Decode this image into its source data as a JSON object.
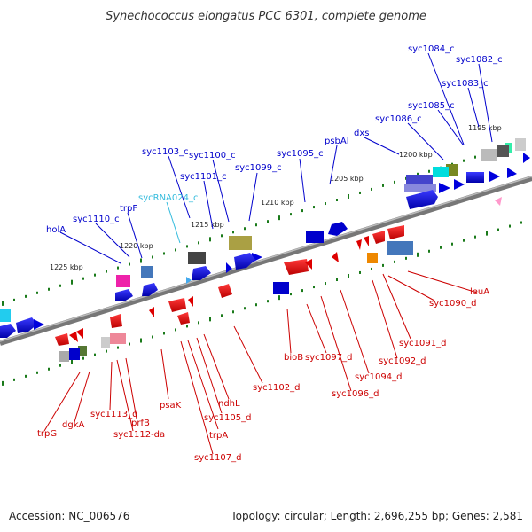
{
  "title": "Synechococcus elongatus PCC 6301, complete genome",
  "footer": {
    "accession": "Accession: NC_006576",
    "topology": "Topology: circular; Length: 2,696,255 bp; Genes: 2,581"
  },
  "colors": {
    "forward_label": "#0000cc",
    "reverse_label": "#cc0000",
    "rna_label": "#33bbdd",
    "backbone": "#888888",
    "tick": "#1a7a1a"
  },
  "kbp_labels": [
    "1195 kbp",
    "1200 kbp",
    "1205 kbp",
    "1210 kbp",
    "1215 kbp",
    "1220 kbp",
    "1225 kbp"
  ],
  "top_labels": [
    "syc1084_c",
    "syc1082_c",
    "syc1083_c",
    "syc1085_c",
    "syc1086_c",
    "dxs",
    "psbAI",
    "syc1095_c",
    "syc1103_c",
    "syc1100_c",
    "syc1101_c",
    "syc1099_c",
    "sycRNA024_c",
    "trpF",
    "syc1110_c",
    "holA"
  ],
  "bottom_labels": [
    "leuA",
    "syc1090_d",
    "syc1091_d",
    "syc1092_d",
    "syc1094_d",
    "syc1096_d",
    "syc1097_d",
    "bioB",
    "syc1102_d",
    "ndhL",
    "syc1105_d",
    "trpA",
    "syc1107_d",
    "psaK",
    "prfB",
    "syc1112-da",
    "syc1113_d",
    "dgkA",
    "trpG"
  ]
}
